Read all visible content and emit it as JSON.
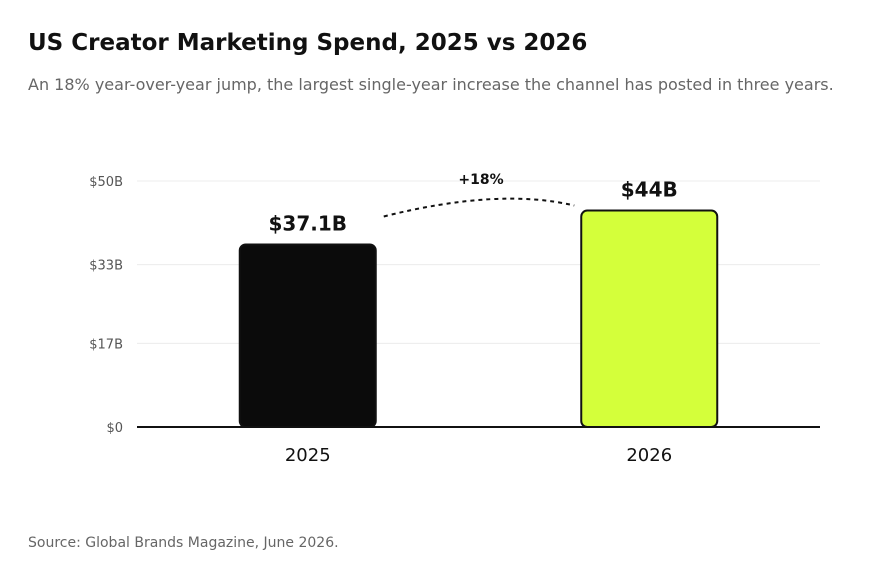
{
  "header": {
    "title": "US Creator Marketing Spend, 2025 vs 2026",
    "subtitle": "An 18% year-over-year jump, the largest single-year increase the channel has posted in three years."
  },
  "footer": {
    "source": "Source: Global Brands Magazine, June 2026."
  },
  "chart_data": {
    "type": "bar",
    "categories": [
      "2025",
      "2026"
    ],
    "values": [
      37.1,
      44
    ],
    "value_labels": [
      "$37.1B",
      "$44B"
    ],
    "bar_colors": [
      "#0b0b0b",
      "#d4ff3a"
    ],
    "bar_stroke": "#111111",
    "ylim": [
      0,
      50
    ],
    "yticks": [
      0,
      17,
      33,
      50
    ],
    "ytick_labels": [
      "$0",
      "$17B",
      "$33B",
      "$50B"
    ],
    "grid": true,
    "legend": "none",
    "annotation": {
      "text": "+18%",
      "from": "2025",
      "to": "2026",
      "style": "dashed-arc"
    }
  }
}
